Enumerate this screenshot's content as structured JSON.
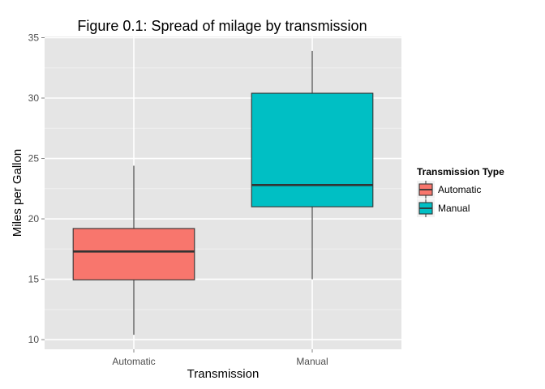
{
  "chart_data": {
    "type": "boxplot",
    "title": "Figure 0.1: Spread of milage by transmission",
    "xlabel": "Transmission",
    "ylabel": "Miles per Gallon",
    "categories": [
      "Automatic",
      "Manual"
    ],
    "ylim": [
      9.2,
      35.1
    ],
    "yticks": [
      10,
      15,
      20,
      25,
      30,
      35
    ],
    "grid": true,
    "legend": {
      "title": "Transmission Type",
      "position": "right"
    },
    "series": [
      {
        "name": "Automatic",
        "min": 10.4,
        "q1": 14.95,
        "median": 17.3,
        "q3": 19.2,
        "max": 24.4,
        "color": "#F8766D"
      },
      {
        "name": "Manual",
        "min": 15.0,
        "q1": 21.0,
        "median": 22.8,
        "q3": 30.4,
        "max": 33.9,
        "color": "#00BFC4"
      }
    ]
  },
  "colors": {
    "panel": "#e5e5e5",
    "gridMajor": "#ffffff",
    "gridMinor": "#f0f0f0",
    "stroke": "#333333"
  }
}
